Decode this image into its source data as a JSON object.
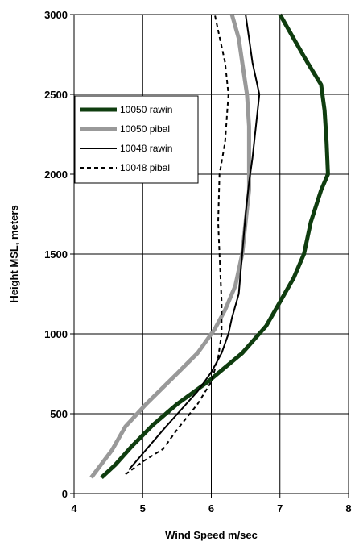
{
  "chart_data": {
    "type": "line",
    "title": "",
    "xlabel": "Wind Speed m/sec",
    "ylabel": "Height MSL, meters",
    "xlim": [
      4,
      8
    ],
    "ylim": [
      0,
      3000
    ],
    "x_ticks": [
      "4",
      "5",
      "6",
      "7",
      "8"
    ],
    "y_ticks": [
      "0",
      "500",
      "1000",
      "1500",
      "2000",
      "2500",
      "3000"
    ],
    "grid": true,
    "legend_position": "top-left",
    "series": [
      {
        "name": "10050 rawin",
        "color": "#0f3d0f",
        "style": "solid-thick",
        "points": [
          [
            4.4,
            100
          ],
          [
            4.6,
            180
          ],
          [
            4.85,
            300
          ],
          [
            5.15,
            430
          ],
          [
            5.5,
            560
          ],
          [
            5.95,
            700
          ],
          [
            6.45,
            880
          ],
          [
            6.8,
            1050
          ],
          [
            7.0,
            1200
          ],
          [
            7.2,
            1350
          ],
          [
            7.35,
            1500
          ],
          [
            7.45,
            1700
          ],
          [
            7.6,
            1900
          ],
          [
            7.7,
            2000
          ],
          [
            7.68,
            2200
          ],
          [
            7.65,
            2400
          ],
          [
            7.6,
            2560
          ],
          [
            7.4,
            2700
          ],
          [
            7.2,
            2850
          ],
          [
            7.0,
            3000
          ]
        ]
      },
      {
        "name": "10050 pibal",
        "color": "#999999",
        "style": "solid-thick",
        "points": [
          [
            4.25,
            100
          ],
          [
            4.55,
            270
          ],
          [
            4.75,
            420
          ],
          [
            5.05,
            560
          ],
          [
            5.45,
            730
          ],
          [
            5.8,
            880
          ],
          [
            6.05,
            1030
          ],
          [
            6.2,
            1150
          ],
          [
            6.35,
            1300
          ],
          [
            6.45,
            1500
          ],
          [
            6.5,
            1700
          ],
          [
            6.55,
            1900
          ],
          [
            6.55,
            2100
          ],
          [
            6.55,
            2300
          ],
          [
            6.52,
            2500
          ],
          [
            6.45,
            2700
          ],
          [
            6.4,
            2850
          ],
          [
            6.3,
            3000
          ]
        ]
      },
      {
        "name": "10048 rawin",
        "color": "#000000",
        "style": "solid-thin",
        "points": [
          [
            4.8,
            150
          ],
          [
            5.0,
            250
          ],
          [
            5.3,
            400
          ],
          [
            5.55,
            520
          ],
          [
            5.8,
            640
          ],
          [
            6.0,
            760
          ],
          [
            6.15,
            880
          ],
          [
            6.25,
            1000
          ],
          [
            6.3,
            1100
          ],
          [
            6.4,
            1250
          ],
          [
            6.45,
            1500
          ],
          [
            6.5,
            1750
          ],
          [
            6.55,
            1950
          ],
          [
            6.6,
            2100
          ],
          [
            6.65,
            2300
          ],
          [
            6.7,
            2500
          ],
          [
            6.6,
            2700
          ],
          [
            6.55,
            2850
          ],
          [
            6.5,
            3000
          ]
        ]
      },
      {
        "name": "10048 pibal",
        "color": "#000000",
        "style": "dashed",
        "points": [
          [
            4.75,
            120
          ],
          [
            5.0,
            200
          ],
          [
            5.3,
            280
          ],
          [
            5.5,
            400
          ],
          [
            5.8,
            560
          ],
          [
            6.0,
            700
          ],
          [
            6.1,
            850
          ],
          [
            6.15,
            1000
          ],
          [
            6.15,
            1200
          ],
          [
            6.12,
            1500
          ],
          [
            6.1,
            1700
          ],
          [
            6.12,
            2000
          ],
          [
            6.2,
            2200
          ],
          [
            6.25,
            2500
          ],
          [
            6.2,
            2700
          ],
          [
            6.1,
            2900
          ],
          [
            6.05,
            3000
          ]
        ]
      }
    ]
  }
}
